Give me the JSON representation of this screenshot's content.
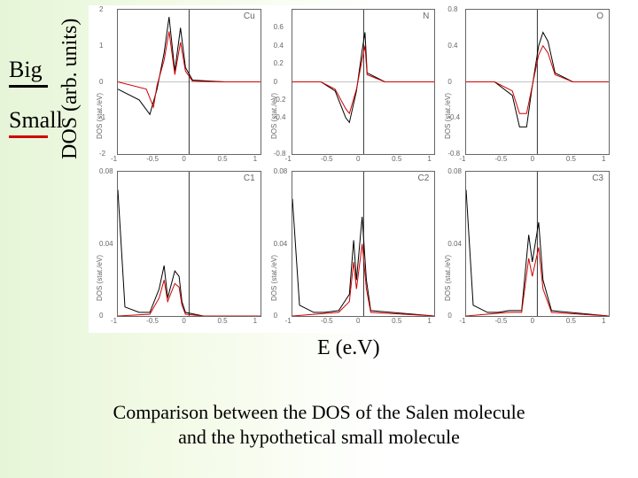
{
  "legend": {
    "big": {
      "label": "Big",
      "color": "#000000"
    },
    "small": {
      "label": "Small",
      "color": "#d00000"
    }
  },
  "axes": {
    "y_label": "DOS (arb. units)",
    "x_label": "E (e.V)"
  },
  "caption": {
    "line1": "Comparison between the DOS of the Salen molecule",
    "line2": "and the hypothetical small molecule"
  },
  "plot": {
    "layout": {
      "rows": 2,
      "cols": 3
    },
    "xlim": [
      -1,
      1
    ],
    "xtick_labels": [
      "-1",
      "-0.5",
      "0",
      "0.5",
      "1"
    ],
    "panel_sublabel": "DOS (stat./eV)",
    "background_color": "#ffffff",
    "series_colors": {
      "big": "#000000",
      "small": "#d00000"
    },
    "line_width": 1,
    "panels": [
      {
        "title": "Cu",
        "ylim": [
          -2,
          2
        ],
        "yticks": [
          "-2",
          "-1",
          "0",
          "1",
          "2"
        ],
        "big": [
          [
            -1,
            -0.2
          ],
          [
            -0.7,
            -0.5
          ],
          [
            -0.55,
            -0.9
          ],
          [
            -0.45,
            -0.2
          ],
          [
            -0.35,
            0.8
          ],
          [
            -0.28,
            1.8
          ],
          [
            -0.2,
            0.3
          ],
          [
            -0.12,
            1.5
          ],
          [
            -0.05,
            0.4
          ],
          [
            0.05,
            0.05
          ],
          [
            0.5,
            0.0
          ],
          [
            1,
            0.0
          ]
        ],
        "small": [
          [
            -1,
            0
          ],
          [
            -0.6,
            -0.2
          ],
          [
            -0.5,
            -0.7
          ],
          [
            -0.45,
            -0.1
          ],
          [
            -0.35,
            0.6
          ],
          [
            -0.28,
            1.4
          ],
          [
            -0.2,
            0.2
          ],
          [
            -0.12,
            1.1
          ],
          [
            -0.05,
            0.3
          ],
          [
            0.05,
            0.02
          ],
          [
            0.5,
            0.0
          ],
          [
            1,
            0.0
          ]
        ]
      },
      {
        "title": "N",
        "ylim": [
          -0.8,
          0.8
        ],
        "yticks": [
          "-0.8",
          "-0.4",
          "-0.2",
          "0",
          "0.2",
          "0.4",
          "0.6"
        ],
        "big": [
          [
            -1,
            0
          ],
          [
            -0.6,
            0
          ],
          [
            -0.4,
            -0.1
          ],
          [
            -0.25,
            -0.4
          ],
          [
            -0.2,
            -0.45
          ],
          [
            -0.1,
            -0.1
          ],
          [
            -0.02,
            0.35
          ],
          [
            0.02,
            0.55
          ],
          [
            0.05,
            0.1
          ],
          [
            0.3,
            0
          ],
          [
            1,
            0
          ]
        ],
        "small": [
          [
            -1,
            0
          ],
          [
            -0.6,
            0
          ],
          [
            -0.4,
            -0.08
          ],
          [
            -0.25,
            -0.3
          ],
          [
            -0.2,
            -0.35
          ],
          [
            -0.1,
            -0.08
          ],
          [
            -0.02,
            0.25
          ],
          [
            0.02,
            0.4
          ],
          [
            0.05,
            0.08
          ],
          [
            0.3,
            0
          ],
          [
            1,
            0
          ]
        ]
      },
      {
        "title": "O",
        "ylim": [
          -0.8,
          0.8
        ],
        "yticks": [
          "-0.8",
          "-0.4",
          "0",
          "0.4",
          "0.8"
        ],
        "big": [
          [
            -1,
            0
          ],
          [
            -0.6,
            0
          ],
          [
            -0.35,
            -0.15
          ],
          [
            -0.25,
            -0.5
          ],
          [
            -0.15,
            -0.5
          ],
          [
            -0.08,
            -0.1
          ],
          [
            0.02,
            0.4
          ],
          [
            0.08,
            0.55
          ],
          [
            0.15,
            0.45
          ],
          [
            0.25,
            0.1
          ],
          [
            0.5,
            0
          ],
          [
            1,
            0
          ]
        ],
        "small": [
          [
            -1,
            0
          ],
          [
            -0.6,
            0
          ],
          [
            -0.35,
            -0.1
          ],
          [
            -0.25,
            -0.35
          ],
          [
            -0.15,
            -0.35
          ],
          [
            -0.08,
            -0.08
          ],
          [
            0.02,
            0.3
          ],
          [
            0.08,
            0.4
          ],
          [
            0.15,
            0.32
          ],
          [
            0.25,
            0.08
          ],
          [
            0.5,
            0
          ],
          [
            1,
            0
          ]
        ]
      },
      {
        "title": "C1",
        "ylim": [
          0,
          0.08
        ],
        "yticks": [
          "0",
          "0.04",
          "0.08"
        ],
        "big": [
          [
            -1,
            0.07
          ],
          [
            -0.9,
            0.005
          ],
          [
            -0.7,
            0.002
          ],
          [
            -0.55,
            0.002
          ],
          [
            -0.42,
            0.015
          ],
          [
            -0.35,
            0.028
          ],
          [
            -0.3,
            0.01
          ],
          [
            -0.2,
            0.025
          ],
          [
            -0.14,
            0.022
          ],
          [
            -0.1,
            0.008
          ],
          [
            -0.05,
            0.002
          ],
          [
            0.2,
            0
          ],
          [
            1,
            0
          ]
        ],
        "small": [
          [
            -1,
            0
          ],
          [
            -0.55,
            0.001
          ],
          [
            -0.42,
            0.01
          ],
          [
            -0.35,
            0.02
          ],
          [
            -0.3,
            0.008
          ],
          [
            -0.2,
            0.018
          ],
          [
            -0.14,
            0.016
          ],
          [
            -0.1,
            0.006
          ],
          [
            -0.05,
            0.001
          ],
          [
            0.2,
            0
          ],
          [
            1,
            0
          ]
        ]
      },
      {
        "title": "C2",
        "ylim": [
          0,
          0.08
        ],
        "yticks": [
          "0",
          "0.04",
          "0.08"
        ],
        "big": [
          [
            -1,
            0.065
          ],
          [
            -0.9,
            0.006
          ],
          [
            -0.7,
            0.002
          ],
          [
            -0.55,
            0.002
          ],
          [
            -0.35,
            0.003
          ],
          [
            -0.2,
            0.012
          ],
          [
            -0.14,
            0.042
          ],
          [
            -0.1,
            0.02
          ],
          [
            -0.02,
            0.055
          ],
          [
            0.04,
            0.02
          ],
          [
            0.1,
            0.003
          ],
          [
            1,
            0
          ]
        ],
        "small": [
          [
            -1,
            0
          ],
          [
            -0.35,
            0.002
          ],
          [
            -0.2,
            0.008
          ],
          [
            -0.14,
            0.03
          ],
          [
            -0.1,
            0.015
          ],
          [
            -0.02,
            0.04
          ],
          [
            0.04,
            0.015
          ],
          [
            0.1,
            0.002
          ],
          [
            1,
            0
          ]
        ]
      },
      {
        "title": "C3",
        "ylim": [
          0,
          0.08
        ],
        "yticks": [
          "0",
          "0.04",
          "0.08"
        ],
        "big": [
          [
            -1,
            0.07
          ],
          [
            -0.9,
            0.006
          ],
          [
            -0.7,
            0.002
          ],
          [
            -0.55,
            0.002
          ],
          [
            -0.4,
            0.003
          ],
          [
            -0.22,
            0.003
          ],
          [
            -0.12,
            0.045
          ],
          [
            -0.07,
            0.03
          ],
          [
            0.02,
            0.052
          ],
          [
            0.08,
            0.02
          ],
          [
            0.2,
            0.003
          ],
          [
            1,
            0
          ]
        ],
        "small": [
          [
            -1,
            0
          ],
          [
            -0.4,
            0.002
          ],
          [
            -0.22,
            0.002
          ],
          [
            -0.12,
            0.032
          ],
          [
            -0.07,
            0.022
          ],
          [
            0.02,
            0.038
          ],
          [
            0.08,
            0.015
          ],
          [
            0.2,
            0.002
          ],
          [
            1,
            0
          ]
        ]
      }
    ]
  }
}
